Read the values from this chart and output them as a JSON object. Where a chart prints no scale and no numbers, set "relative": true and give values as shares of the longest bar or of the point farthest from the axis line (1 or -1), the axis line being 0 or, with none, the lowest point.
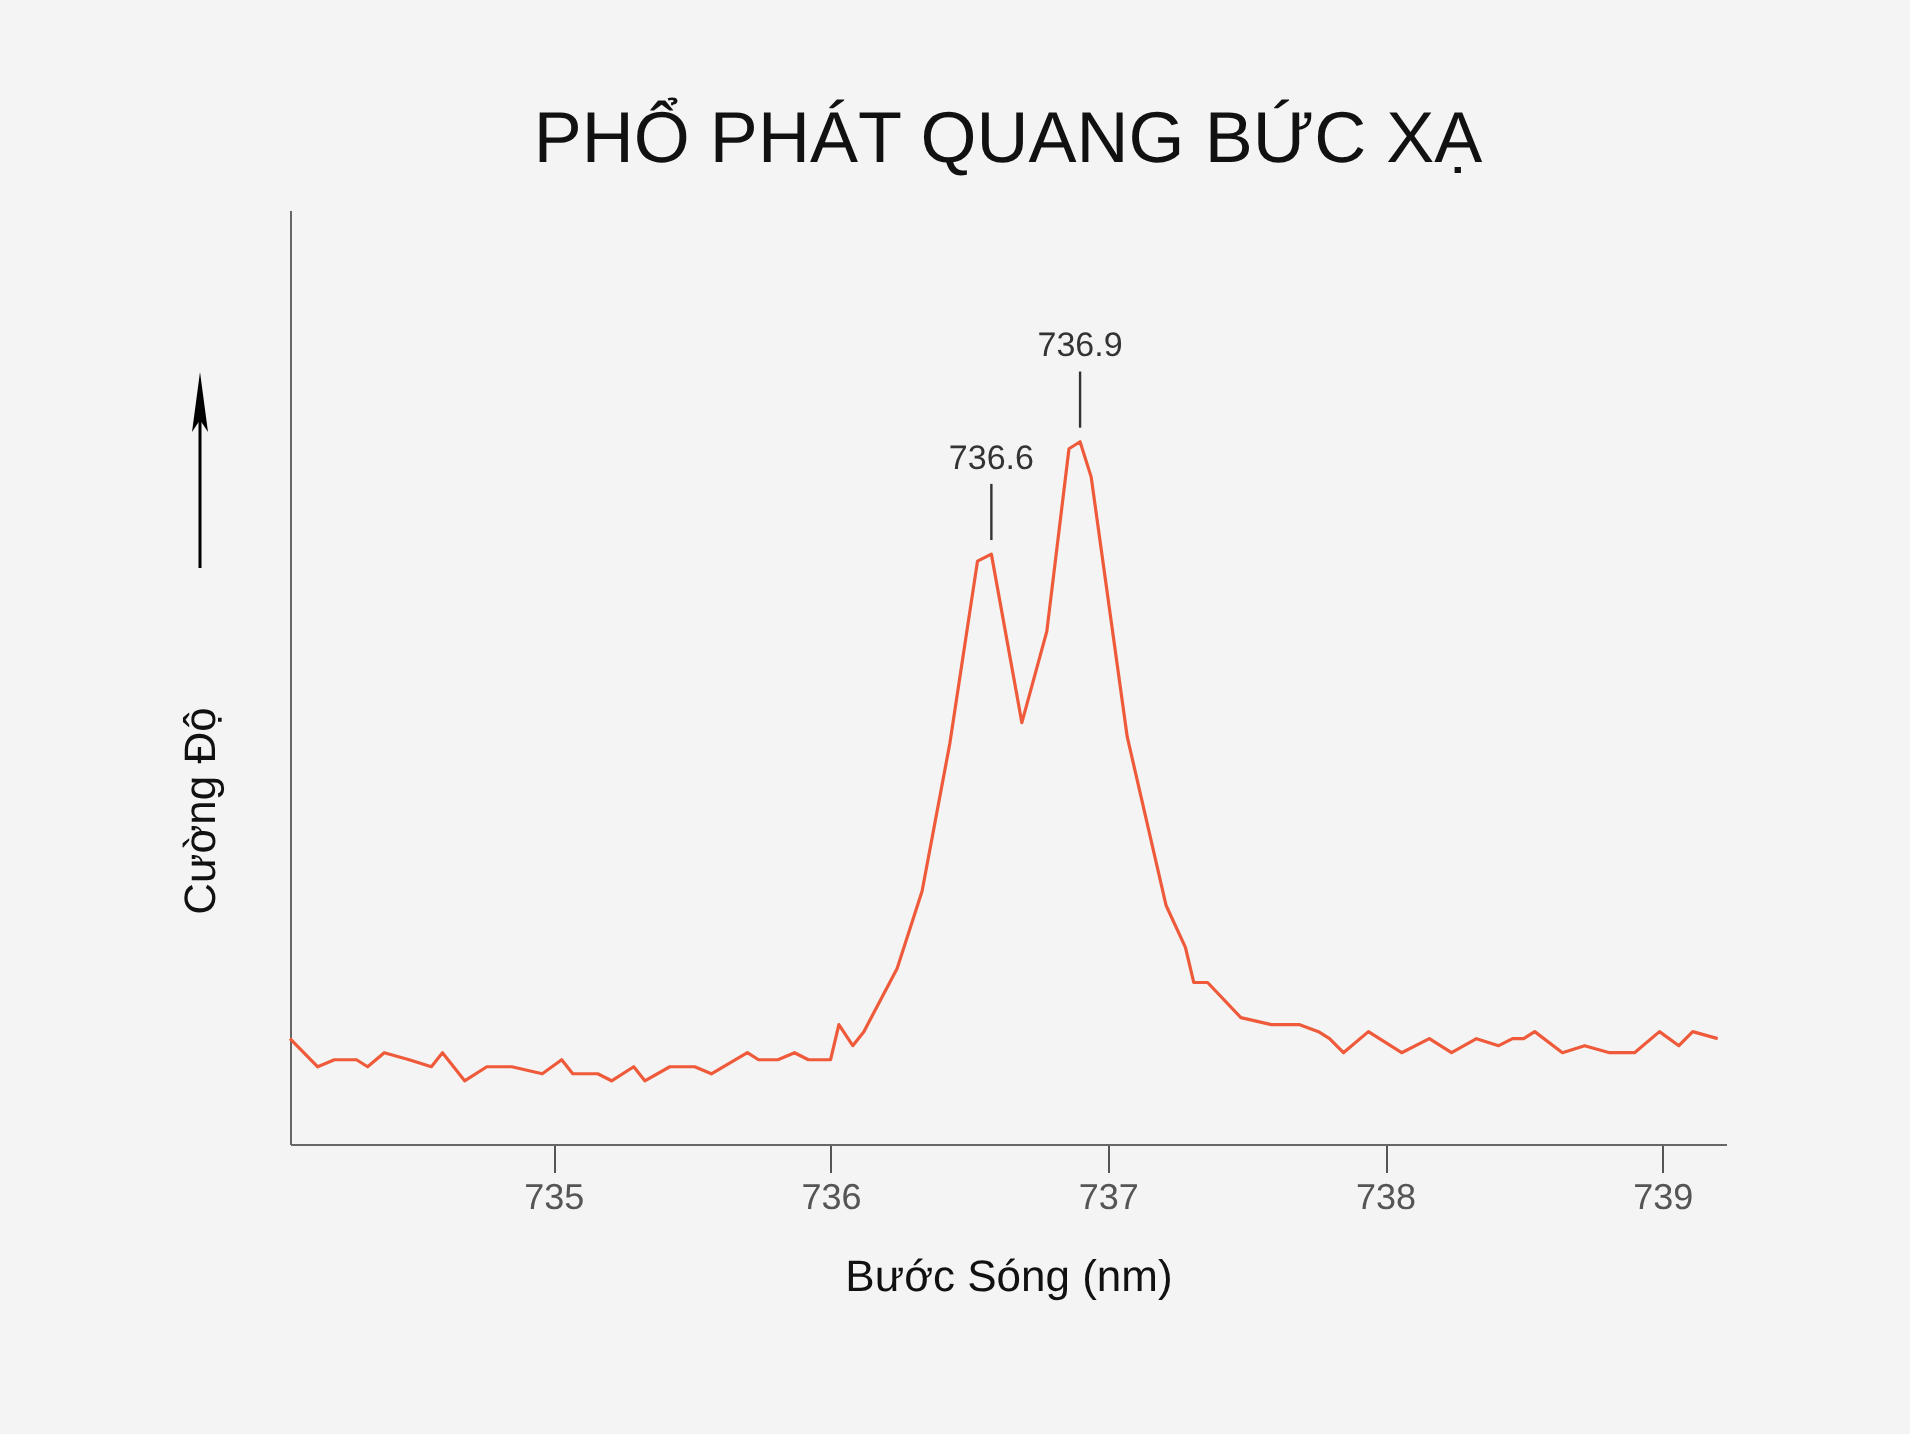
{
  "chart_data": {
    "type": "line",
    "title": "PHỔ PHÁT QUANG BỨC XẠ",
    "xlabel": "Bước Sóng (nm)",
    "ylabel": "Cường Độ",
    "relative": true,
    "color": "#ee5a3a",
    "xlim": [
      734.05,
      739.23
    ],
    "xticks": [
      735,
      736,
      737,
      738,
      739
    ],
    "x": [
      734.05,
      734.15,
      734.21,
      734.29,
      734.33,
      734.39,
      734.48,
      734.56,
      734.6,
      734.68,
      734.76,
      734.85,
      734.96,
      735.03,
      735.07,
      735.16,
      735.21,
      735.29,
      735.33,
      735.42,
      735.51,
      735.57,
      735.7,
      735.74,
      735.81,
      735.87,
      735.92,
      736.0,
      736.03,
      736.08,
      736.12,
      736.24,
      736.33,
      736.43,
      736.53,
      736.58,
      736.69,
      736.78,
      736.86,
      736.9,
      736.94,
      737.07,
      737.21,
      737.28,
      737.31,
      737.36,
      737.48,
      737.59,
      737.69,
      737.76,
      737.8,
      737.85,
      737.94,
      738.06,
      738.16,
      738.24,
      738.33,
      738.41,
      738.46,
      738.5,
      738.54,
      738.64,
      738.72,
      738.81,
      738.9,
      738.99,
      739.06,
      739.11,
      739.2
    ],
    "values": [
      0.15,
      0.11,
      0.12,
      0.12,
      0.11,
      0.13,
      0.12,
      0.11,
      0.13,
      0.09,
      0.11,
      0.11,
      0.1,
      0.12,
      0.1,
      0.1,
      0.09,
      0.11,
      0.09,
      0.11,
      0.11,
      0.1,
      0.13,
      0.12,
      0.12,
      0.13,
      0.12,
      0.12,
      0.17,
      0.14,
      0.16,
      0.25,
      0.36,
      0.57,
      0.83,
      0.84,
      0.6,
      0.73,
      0.99,
      1.0,
      0.95,
      0.58,
      0.34,
      0.28,
      0.23,
      0.23,
      0.18,
      0.17,
      0.17,
      0.16,
      0.15,
      0.13,
      0.16,
      0.13,
      0.15,
      0.13,
      0.15,
      0.14,
      0.15,
      0.15,
      0.16,
      0.13,
      0.14,
      0.13,
      0.13,
      0.16,
      0.14,
      0.16,
      0.15
    ],
    "annotations": [
      {
        "text": "736.6",
        "x": 736.58,
        "y": 0.84
      },
      {
        "text": "736.9",
        "x": 736.9,
        "y": 1.0
      }
    ]
  }
}
